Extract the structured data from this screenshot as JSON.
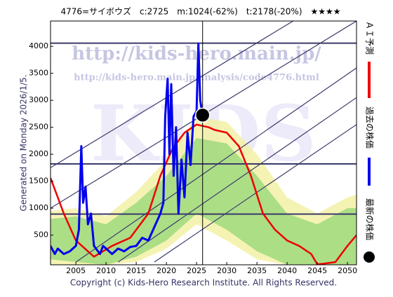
{
  "chart_data": {
    "type": "line",
    "title": "4776=サイボウズ　c:2725　m:1024(-62%)　t:2178(-20%)　★★★★",
    "side_label": "Generated on Monday 2026/1/5.",
    "footer": "Copyright (c) Kids-Hero Research Institute. All Rights Reserved.",
    "watermarks": [
      "http://kids-hero.main.jp/",
      "http://kids-hero.main.jp/analysis/code4776.html",
      "KIDS"
    ],
    "xlim": [
      2000.8,
      2051.5
    ],
    "ylim": [
      -50,
      4470
    ],
    "xticks": [
      2005,
      2010,
      2015,
      2020,
      2025,
      2030,
      2035,
      2040,
      2045,
      2050
    ],
    "yticks": [
      500,
      1000,
      1500,
      2000,
      2500,
      3000,
      3500,
      4000
    ],
    "bands": [
      {
        "color": "#f3f0a0",
        "x": [
          2000.8,
          2005,
          2010,
          2015,
          2020,
          2025,
          2030,
          2035,
          2040,
          2045,
          2050,
          2051.5
        ],
        "upper": [
          950,
          1000,
          850,
          1300,
          1900,
          2700,
          2600,
          2000,
          1200,
          900,
          1200,
          1250
        ],
        "lower": [
          -50,
          -50,
          -50,
          0,
          250,
          700,
          400,
          50,
          -50,
          -50,
          -50,
          -50
        ]
      },
      {
        "color": "#9ad87a",
        "x": [
          2000.8,
          2005,
          2010,
          2015,
          2020,
          2025,
          2030,
          2035,
          2040,
          2045,
          2050,
          2051.5
        ],
        "upper": [
          800,
          850,
          700,
          1100,
          1600,
          2300,
          2200,
          1600,
          900,
          700,
          1000,
          1000
        ],
        "lower": [
          50,
          0,
          -50,
          100,
          400,
          900,
          600,
          200,
          -50,
          -50,
          -50,
          -50
        ]
      }
    ],
    "trend_lines": [
      {
        "x": [
          2000.8,
          2041
        ],
        "values": [
          1750,
          4470
        ]
      },
      {
        "x": [
          2000.8,
          2051.5
        ],
        "values": [
          1000,
          4470
        ]
      },
      {
        "x": [
          2005,
          2051.5
        ],
        "values": [
          0,
          3600
        ]
      },
      {
        "x": [
          2012,
          2051.5
        ],
        "values": [
          0,
          3050
        ]
      },
      {
        "x": [
          2018,
          2051.5
        ],
        "values": [
          0,
          2550
        ]
      }
    ],
    "hlines": [
      4060,
      1820,
      890
    ],
    "vline": 2026,
    "series": [
      {
        "name": "ＡＩ予測",
        "color": "#ee0000",
        "x": [
          2000.8,
          2003,
          2005,
          2008,
          2011,
          2014,
          2017,
          2019,
          2021,
          2023,
          2025,
          2027,
          2028,
          2030,
          2032,
          2034,
          2036,
          2038,
          2040,
          2042,
          2044,
          2045,
          2046,
          2048,
          2050,
          2051.5
        ],
        "values": [
          1560,
          900,
          400,
          100,
          300,
          450,
          900,
          1600,
          2100,
          2400,
          2550,
          2500,
          2450,
          2400,
          2150,
          1600,
          900,
          600,
          400,
          300,
          150,
          -40,
          -30,
          0,
          300,
          500
        ]
      },
      {
        "name": "過去の株価",
        "color": "#0000ee",
        "x": [
          2000.8,
          2001.5,
          2002,
          2003,
          2004,
          2005,
          2005.5,
          2005.9,
          2006.2,
          2006.6,
          2007,
          2007.5,
          2008,
          2009,
          2009.5,
          2010,
          2011,
          2012,
          2013,
          2014,
          2015,
          2016,
          2017,
          2018,
          2019,
          2019.5,
          2019.8,
          2020.2,
          2020.5,
          2020.8,
          2021.2,
          2021.6,
          2022,
          2022.5,
          2023,
          2023.5,
          2024,
          2024.5,
          2025,
          2025.3,
          2025.6,
          2026
        ],
        "values": [
          300,
          150,
          250,
          150,
          200,
          300,
          600,
          2150,
          1100,
          1400,
          700,
          900,
          300,
          150,
          300,
          250,
          150,
          250,
          200,
          280,
          300,
          450,
          400,
          650,
          900,
          1100,
          2700,
          3400,
          2000,
          3300,
          1600,
          2500,
          900,
          1900,
          1200,
          2400,
          1800,
          2700,
          2800,
          4050,
          3000,
          2725
        ]
      },
      {
        "name": "最新の株価",
        "color": "#000000",
        "x": [
          2026
        ],
        "values": [
          2725
        ]
      }
    ]
  }
}
